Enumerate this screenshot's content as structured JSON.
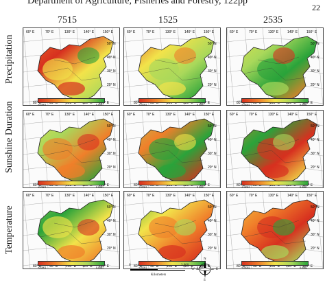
{
  "header": {
    "citation_text": "Department of Agriculture, Fisheries and Forestry, 122pp",
    "page_number": "22"
  },
  "columns": [
    {
      "title": "7515"
    },
    {
      "title": "1525"
    },
    {
      "title": "2535"
    }
  ],
  "rows": [
    {
      "label": "Precipitation",
      "legends": [
        {
          "low": "-0.0001",
          "high": "0.0001"
        },
        {
          "low": "-0.0001",
          "high": "0.0001"
        },
        {
          "low": "-0.0001",
          "high": "0.0001"
        }
      ]
    },
    {
      "label": "Sunshine Duration",
      "legends": [
        {
          "low": "-0.0001",
          "high": "0.0001"
        },
        {
          "low": "-0.0001",
          "high": "0.0001"
        },
        {
          "low": "-0.0001",
          "high": "0.0001"
        }
      ]
    },
    {
      "label": "Temperature",
      "legends": [
        {
          "low": "-0.0001",
          "high": "0.0001"
        },
        {
          "low": "-0.0001",
          "high": "0.0002"
        },
        {
          "low": "-0.0002",
          "high": "0.0002"
        }
      ]
    }
  ],
  "graticule": {
    "lon_top": [
      "60° E",
      "70° E",
      "130° E",
      "140° E",
      "150° E"
    ],
    "lon_bottom": [
      "80° E",
      "90° E",
      "100° E",
      "110° E",
      "120° E"
    ],
    "lat_right": [
      "50° N",
      "40° N",
      "30° N",
      "20° N"
    ]
  },
  "scale_bar": {
    "start": "0",
    "end": "3,000",
    "unit": "Kilometers"
  },
  "compass": {
    "n": "N",
    "s": "S",
    "e": "E",
    "w": "W"
  },
  "colors": {
    "red": "#d7301f",
    "orange": "#f07f2a",
    "yellow": "#f2e34a",
    "light_green": "#a9d85b",
    "green": "#2aa33a"
  }
}
